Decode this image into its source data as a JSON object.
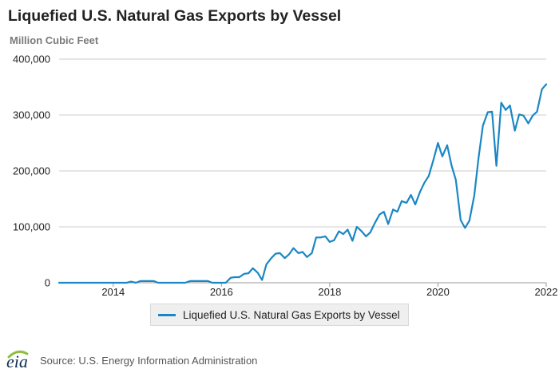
{
  "header": {
    "title": "Liquefied U.S. Natural Gas Exports by Vessel",
    "unit_label": "Million Cubic Feet"
  },
  "colors": {
    "series": "#1a87c4",
    "grid": "#cccccc",
    "logo_arc": "#8cbf3f"
  },
  "legend": {
    "label": "Liquefied U.S. Natural Gas Exports by Vessel"
  },
  "footer": {
    "logo_text": "eia",
    "source": "Source: U.S. Energy Information Administration"
  },
  "chart_data": {
    "type": "line",
    "title": "Liquefied U.S. Natural Gas Exports by Vessel",
    "ylabel": "Million Cubic Feet",
    "xlabel": "",
    "xlim": [
      2013.0,
      2022.0
    ],
    "ylim": [
      0,
      400000
    ],
    "y_ticks": [
      0,
      100000,
      200000,
      300000,
      400000
    ],
    "y_tick_labels": [
      "0",
      "100,000",
      "200,000",
      "300,000",
      "400,000"
    ],
    "x_ticks": [
      2014,
      2016,
      2018,
      2020,
      2022
    ],
    "x_tick_labels": [
      "2014",
      "2016",
      "2018",
      "2020",
      "2022"
    ],
    "grid": true,
    "legend_position": "bottom-center",
    "series": [
      {
        "name": "Liquefied U.S. Natural Gas Exports by Vessel",
        "points": [
          [
            2013.0,
            0
          ],
          [
            2013.5,
            0
          ],
          [
            2014.0,
            0
          ],
          [
            2014.25,
            0
          ],
          [
            2014.33,
            2000
          ],
          [
            2014.42,
            0
          ],
          [
            2014.5,
            3000
          ],
          [
            2014.75,
            3000
          ],
          [
            2014.83,
            0
          ],
          [
            2015.0,
            0
          ],
          [
            2015.33,
            0
          ],
          [
            2015.42,
            3000
          ],
          [
            2015.75,
            3000
          ],
          [
            2015.83,
            0
          ],
          [
            2016.0,
            0
          ],
          [
            2016.08,
            0
          ],
          [
            2016.17,
            9000
          ],
          [
            2016.25,
            10000
          ],
          [
            2016.33,
            10000
          ],
          [
            2016.42,
            16000
          ],
          [
            2016.5,
            17000
          ],
          [
            2016.58,
            26000
          ],
          [
            2016.67,
            18000
          ],
          [
            2016.75,
            5000
          ],
          [
            2016.83,
            33000
          ],
          [
            2016.92,
            44000
          ],
          [
            2017.0,
            52000
          ],
          [
            2017.08,
            53000
          ],
          [
            2017.17,
            44000
          ],
          [
            2017.25,
            51000
          ],
          [
            2017.33,
            62000
          ],
          [
            2017.42,
            53000
          ],
          [
            2017.5,
            55000
          ],
          [
            2017.58,
            46000
          ],
          [
            2017.67,
            53000
          ],
          [
            2017.75,
            81000
          ],
          [
            2017.83,
            81000
          ],
          [
            2017.92,
            83000
          ],
          [
            2018.0,
            73000
          ],
          [
            2018.08,
            76000
          ],
          [
            2018.17,
            92000
          ],
          [
            2018.25,
            87000
          ],
          [
            2018.33,
            95000
          ],
          [
            2018.42,
            75000
          ],
          [
            2018.5,
            100000
          ],
          [
            2018.58,
            93000
          ],
          [
            2018.67,
            83000
          ],
          [
            2018.75,
            90000
          ],
          [
            2018.83,
            106000
          ],
          [
            2018.92,
            122000
          ],
          [
            2019.0,
            127000
          ],
          [
            2019.08,
            105000
          ],
          [
            2019.17,
            131000
          ],
          [
            2019.25,
            127000
          ],
          [
            2019.33,
            146000
          ],
          [
            2019.42,
            143000
          ],
          [
            2019.5,
            157000
          ],
          [
            2019.58,
            140000
          ],
          [
            2019.67,
            163000
          ],
          [
            2019.75,
            179000
          ],
          [
            2019.83,
            191000
          ],
          [
            2019.92,
            221000
          ],
          [
            2020.0,
            250000
          ],
          [
            2020.08,
            226000
          ],
          [
            2020.17,
            246000
          ],
          [
            2020.25,
            210000
          ],
          [
            2020.33,
            184000
          ],
          [
            2020.42,
            112000
          ],
          [
            2020.5,
            98000
          ],
          [
            2020.58,
            111000
          ],
          [
            2020.67,
            156000
          ],
          [
            2020.75,
            224000
          ],
          [
            2020.83,
            281000
          ],
          [
            2020.92,
            305000
          ],
          [
            2021.0,
            306000
          ],
          [
            2021.08,
            209000
          ],
          [
            2021.17,
            322000
          ],
          [
            2021.25,
            309000
          ],
          [
            2021.33,
            317000
          ],
          [
            2021.42,
            272000
          ],
          [
            2021.5,
            301000
          ],
          [
            2021.58,
            299000
          ],
          [
            2021.67,
            285000
          ],
          [
            2021.75,
            299000
          ],
          [
            2021.83,
            306000
          ],
          [
            2021.92,
            346000
          ],
          [
            2022.0,
            355000
          ]
        ]
      }
    ]
  }
}
